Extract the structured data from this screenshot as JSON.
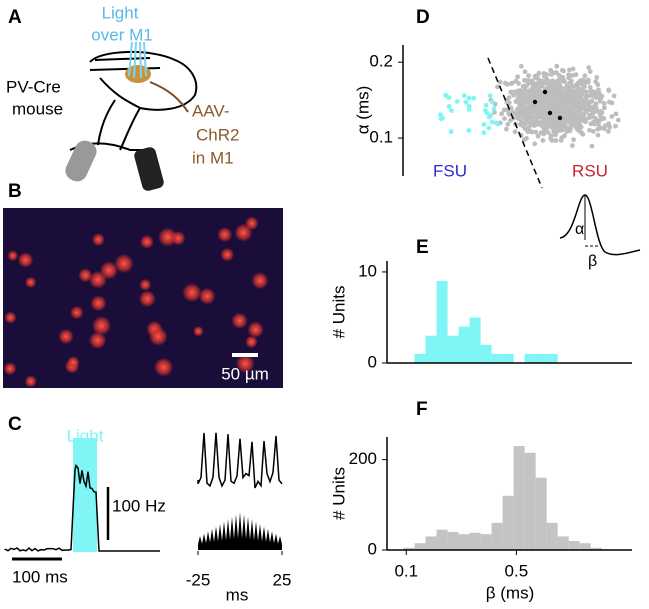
{
  "panels": {
    "a": {
      "label": "A",
      "light": "Light",
      "over": "over M1",
      "strain1": "PV-Cre",
      "strain2": "mouse",
      "virus1": "AAV-",
      "virus2": "ChR2",
      "virus3": "in M1"
    },
    "b": {
      "label": "B",
      "scale": "50 µm"
    },
    "c": {
      "label": "C",
      "light": "Light",
      "scale_y": "100 Hz",
      "scale_x": "100 ms",
      "xticks": [
        -25,
        25
      ],
      "xlabel": "ms"
    },
    "d": {
      "label": "D",
      "alpha": "α",
      "beta": "β"
    },
    "e": {
      "label": "E"
    },
    "f": {
      "label": "F"
    }
  },
  "chart_data": [
    {
      "type": "scatter",
      "ylabel": "α (ms)",
      "ylim": [
        0.05,
        0.22
      ],
      "yticks": [
        0.1,
        0.2
      ],
      "annotations": [
        {
          "text": "FSU",
          "color": "#2a2ad0"
        },
        {
          "text": "RSU",
          "color": "#c8242a"
        }
      ]
    },
    {
      "type": "histogram",
      "ylabel": "# Units",
      "color": "#7ff5f5",
      "bins": [
        0.13,
        0.17,
        0.21,
        0.25,
        0.29,
        0.33,
        0.37,
        0.41,
        0.45,
        0.49,
        0.53,
        0.57,
        0.61,
        0.65
      ],
      "counts": [
        1,
        3,
        9,
        3,
        4,
        5,
        2,
        1,
        1,
        0,
        1,
        1,
        1
      ],
      "xlim": [
        0.03,
        0.92
      ],
      "ylim": [
        0,
        11.2
      ],
      "yticks": [
        0,
        10
      ]
    },
    {
      "type": "histogram",
      "ylabel": "# Units",
      "xlabel": "β (ms)",
      "color": "#c4c4c4",
      "bins": [
        0.09,
        0.13,
        0.17,
        0.21,
        0.25,
        0.29,
        0.33,
        0.37,
        0.41,
        0.45,
        0.49,
        0.53,
        0.57,
        0.61,
        0.65,
        0.69,
        0.73,
        0.77,
        0.81
      ],
      "counts": [
        5,
        15,
        30,
        45,
        40,
        35,
        38,
        35,
        60,
        120,
        230,
        215,
        160,
        60,
        30,
        20,
        15,
        5
      ],
      "xlim": [
        0.03,
        0.92
      ],
      "ylim": [
        0,
        250
      ],
      "yticks": [
        0,
        200
      ],
      "xticks": [
        0.1,
        0.5
      ]
    }
  ]
}
